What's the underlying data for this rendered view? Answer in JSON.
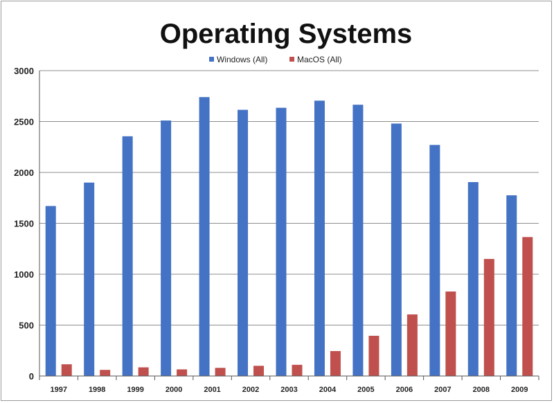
{
  "chart_data": {
    "type": "bar",
    "title": "Operating Systems",
    "xlabel": "",
    "ylabel": "",
    "ylim": [
      0,
      3000
    ],
    "yticks": [
      0,
      500,
      1000,
      1500,
      2000,
      2500,
      3000
    ],
    "grid": true,
    "legend_position": "top-center",
    "categories": [
      "1997",
      "1998",
      "1999",
      "2000",
      "2001",
      "2002",
      "2003",
      "2004",
      "2005",
      "2006",
      "2007",
      "2008",
      "2009"
    ],
    "series": [
      {
        "name": "Windows (All)",
        "color": "#4472c4",
        "values": [
          1670,
          1900,
          2355,
          2510,
          2740,
          2615,
          2635,
          2705,
          2665,
          2480,
          2270,
          1905,
          1775
        ]
      },
      {
        "name": "MacOS (All)",
        "color": "#c0504d",
        "values": [
          115,
          60,
          85,
          65,
          80,
          100,
          110,
          245,
          395,
          605,
          830,
          1150,
          1365
        ]
      }
    ]
  }
}
